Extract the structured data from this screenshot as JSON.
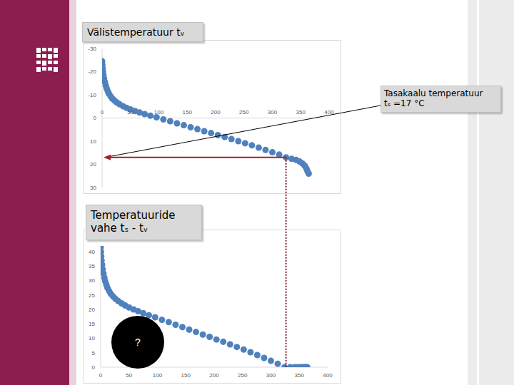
{
  "chart_data": [
    {
      "type": "scatter",
      "title": "Välistemperatuur tᵥ",
      "color": "#4f81bd",
      "marker": "circle",
      "grid": false,
      "x": [
        0,
        0.5,
        1,
        1.5,
        2.5,
        3.5,
        5,
        6.5,
        8,
        10,
        12,
        15,
        18,
        22,
        26,
        31,
        37,
        43,
        50,
        58,
        66,
        75,
        85,
        96,
        108,
        120,
        132,
        144,
        156,
        168,
        180,
        192,
        204,
        216,
        228,
        240,
        252,
        264,
        276,
        288,
        300,
        312,
        324,
        334,
        342,
        348,
        353,
        357,
        360,
        362,
        364
      ],
      "values": [
        -24.5,
        -23,
        -21.5,
        -20,
        -18.5,
        -17,
        -15.5,
        -14,
        -12.8,
        -11.6,
        -10.5,
        -9.4,
        -8.4,
        -7.5,
        -6.7,
        -5.9,
        -5.1,
        -4.4,
        -3.7,
        -3.0,
        -2.4,
        -1.7,
        -1.0,
        -0.3,
        0.6,
        1.4,
        2.3,
        3.1,
        4.0,
        4.8,
        5.7,
        6.5,
        7.4,
        8.2,
        9.1,
        10.0,
        10.9,
        11.8,
        12.8,
        13.8,
        14.8,
        15.8,
        17.0,
        17.6,
        18.1,
        18.8,
        19.6,
        20.6,
        21.8,
        23.0,
        24.0
      ],
      "xlim": [
        0,
        400
      ],
      "xticks": [
        0,
        50,
        100,
        150,
        200,
        250,
        300,
        350,
        400
      ],
      "ylim": [
        30,
        -30
      ],
      "yticks": [
        -30,
        -20,
        -10,
        0,
        10,
        20,
        30
      ],
      "annotations": [
        {
          "text": "Tasakaalu temperatuur tₛ =17 °C",
          "y": 17
        }
      ]
    },
    {
      "type": "scatter",
      "title": "Temperatuuride vahe tₛ - tᵥ",
      "color": "#4f81bd",
      "marker": "circle",
      "grid": false,
      "x": [
        0,
        0.5,
        1,
        1.5,
        2.5,
        3.5,
        5,
        6.5,
        8,
        10,
        12,
        15,
        18,
        22,
        26,
        31,
        37,
        43,
        50,
        58,
        66,
        75,
        85,
        96,
        108,
        120,
        132,
        144,
        156,
        168,
        180,
        192,
        204,
        216,
        228,
        240,
        252,
        264,
        276,
        288,
        300,
        312,
        324,
        334,
        342,
        348,
        353,
        357,
        360,
        362,
        364
      ],
      "values": [
        41.5,
        40,
        38.5,
        37,
        35.5,
        34,
        32.5,
        31,
        29.8,
        28.6,
        27.5,
        26.4,
        25.4,
        24.5,
        23.7,
        22.9,
        22.1,
        21.4,
        20.7,
        20.0,
        19.4,
        18.7,
        18.0,
        17.3,
        16.4,
        15.6,
        14.7,
        13.9,
        13.0,
        12.2,
        11.3,
        10.5,
        9.6,
        8.8,
        7.9,
        7.0,
        6.1,
        5.2,
        4.2,
        3.2,
        2.2,
        1.2,
        0,
        0,
        0,
        0,
        0,
        0,
        0,
        0,
        0
      ],
      "xlim": [
        0,
        400
      ],
      "xticks": [
        0,
        50,
        100,
        150,
        200,
        250,
        300,
        350,
        400
      ],
      "ylim": [
        0,
        42
      ],
      "yticks": [
        0,
        5,
        10,
        15,
        20,
        25,
        30,
        35,
        40
      ],
      "annotations": [
        {
          "text": "?"
        }
      ]
    }
  ]
}
